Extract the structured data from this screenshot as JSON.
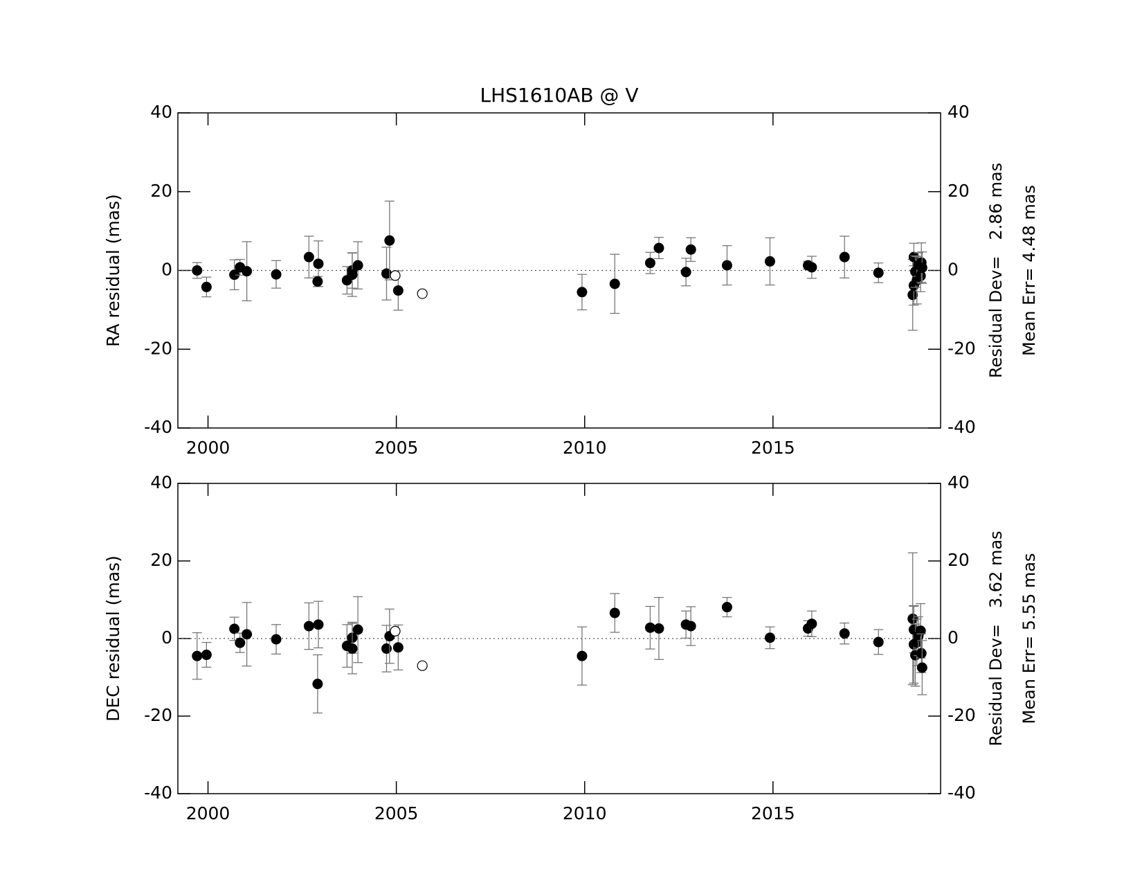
{
  "chart_data": [
    {
      "type": "scatter",
      "title": "LHS1610AB @ V",
      "ylabel": "RA residual (mas)",
      "annotations": [
        "Residual Dev=   2.86 mas",
        "Mean Err= 4.48 mas"
      ],
      "xlim": [
        1999.2,
        2019.45
      ],
      "xticks": [
        2000,
        2005,
        2010,
        2015
      ],
      "ylim": [
        -40,
        40
      ],
      "yticks": [
        -40,
        -20,
        0,
        20,
        40
      ],
      "zero_line": true,
      "error_color": "#777777",
      "series": [
        {
          "marker": "filled",
          "color": "#000000",
          "x": [
            1999.71,
            1999.96,
            2000.7,
            2000.85,
            2001.03,
            2001.81,
            2002.68,
            2002.93,
            2002.91,
            2003.69,
            2003.83,
            2003.83,
            2003.98,
            2004.74,
            2004.82,
            2005.05,
            2009.93,
            2010.8,
            2011.74,
            2011.97,
            2012.69,
            2012.82,
            2013.78,
            2014.92,
            2015.93,
            2016.03,
            2016.9,
            2017.8,
            2018.71,
            2018.74,
            2018.74,
            2018.78,
            2018.82,
            2018.86,
            2018.92,
            2018.94,
            2018.96
          ],
          "values": [
            0,
            -4.2,
            -1.1,
            0.8,
            -0.2,
            -1,
            3.4,
            1.7,
            -2.8,
            -2.5,
            0,
            -1.1,
            1.3,
            -0.8,
            7.6,
            -5.1,
            -5.5,
            -3.4,
            1.9,
            5.7,
            -0.4,
            5.3,
            1.3,
            2.3,
            1.3,
            0.8,
            3.4,
            -0.6,
            -6.2,
            -3.8,
            3.4,
            -0.3,
            -2.5,
            1.5,
            -1.4,
            2.0,
            0.7
          ],
          "errors": [
            2,
            2.5,
            3.8,
            2,
            7.5,
            3.5,
            5.3,
            5.8,
            1.3,
            3.5,
            4.5,
            5.5,
            6,
            6.7,
            10,
            5,
            4.5,
            7.5,
            2.7,
            2.7,
            3.5,
            3,
            5,
            6,
            1,
            2.8,
            5.3,
            2.5,
            9,
            5,
            3.5,
            4,
            6,
            3,
            4,
            5,
            4
          ]
        },
        {
          "marker": "open",
          "color": "#000000",
          "x": [
            2004.97,
            2005.69
          ],
          "values": [
            -1.3,
            -5.9
          ]
        }
      ]
    },
    {
      "type": "scatter",
      "ylabel": "DEC residual (mas)",
      "annotations": [
        "Residual Dev=   3.62 mas",
        "Mean Err= 5.55 mas"
      ],
      "xlim": [
        1999.2,
        2019.45
      ],
      "xticks": [
        2000,
        2005,
        2010,
        2015
      ],
      "ylim": [
        -40,
        40
      ],
      "yticks": [
        -40,
        -20,
        0,
        20,
        40
      ],
      "zero_line": true,
      "error_color": "#777777",
      "series": [
        {
          "marker": "filled",
          "color": "#000000",
          "x": [
            1999.71,
            1999.96,
            2000.7,
            2000.85,
            2001.03,
            2001.81,
            2002.68,
            2002.93,
            2002.91,
            2003.69,
            2003.83,
            2003.83,
            2003.98,
            2004.74,
            2004.82,
            2005.05,
            2009.93,
            2010.8,
            2011.74,
            2011.97,
            2012.69,
            2012.82,
            2013.78,
            2014.92,
            2015.93,
            2016.03,
            2016.9,
            2017.8,
            2018.71,
            2018.74,
            2018.74,
            2018.78,
            2018.82,
            2018.86,
            2018.92,
            2018.94,
            2018.96
          ],
          "values": [
            -4.5,
            -4.2,
            2.5,
            -1.1,
            1.1,
            -0.2,
            3.2,
            3.6,
            -11.7,
            -1.9,
            0.2,
            -2.6,
            2.3,
            -2.6,
            0.6,
            -2.3,
            -4.5,
            6.6,
            2.8,
            2.6,
            3.6,
            3.2,
            8.1,
            0.2,
            2.6,
            3.8,
            1.3,
            -0.9,
            5.1,
            -1.5,
            2.3,
            -4.3,
            -1.0,
            0.6,
            2.0,
            -3.8,
            -7.5
          ],
          "errors": [
            6,
            3.2,
            3,
            2.5,
            8.2,
            3.8,
            6,
            6,
            7.5,
            5.5,
            4,
            6.5,
            8.5,
            6,
            7,
            5.8,
            7.5,
            5,
            5.5,
            8,
            3.5,
            5,
            2.5,
            2.8,
            2,
            3.3,
            2.7,
            3.2,
            17,
            10,
            6,
            8,
            6,
            5,
            7,
            5,
            7
          ]
        },
        {
          "marker": "open",
          "color": "#000000",
          "x": [
            2004.97,
            2005.69
          ],
          "values": [
            1.9,
            -7
          ]
        }
      ]
    }
  ]
}
